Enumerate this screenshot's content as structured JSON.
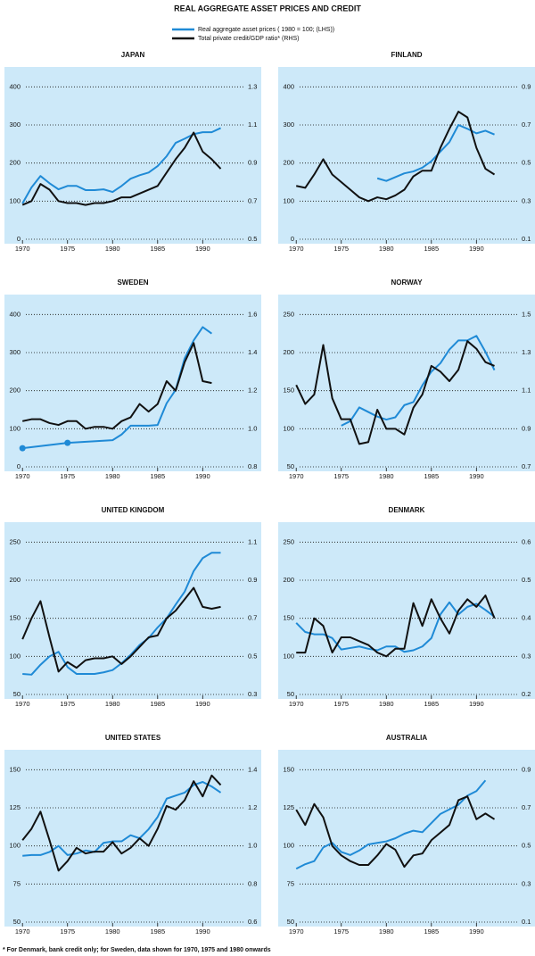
{
  "title": "REAL AGGREGATE ASSET PRICES AND CREDIT",
  "legend": [
    {
      "name": "Real aggregate asset prices ( 1980 = 100; (LHS))",
      "color": "#1f8ad6"
    },
    {
      "name": "Total private credit/GDP ratio* (RHS)",
      "color": "#111111"
    }
  ],
  "footnote": "* For Denmark, bank credit only; for Sweden, data shown for 1970, 1975 and 1980 onwards",
  "chart_data": [
    {
      "type": "line",
      "title": "JAPAN",
      "x": [
        1970,
        1971,
        1972,
        1973,
        1974,
        1975,
        1976,
        1977,
        1978,
        1979,
        1980,
        1981,
        1982,
        1983,
        1984,
        1985,
        1986,
        1987,
        1988,
        1989,
        1990,
        1991,
        1992
      ],
      "xlim": [
        1968,
        1996.5
      ],
      "xticks": [
        1970,
        1975,
        1980,
        1985,
        1990
      ],
      "ylim": [
        0,
        450
      ],
      "yticks": [
        0,
        100,
        200,
        300,
        400
      ],
      "y2lim": [
        0.5,
        1.4
      ],
      "y2ticks": [
        0.5,
        0.7,
        0.9,
        1.1,
        1.3
      ],
      "grid": true,
      "series": [
        {
          "color": "#1f8ad6",
          "values": [
            94,
            136,
            166,
            147,
            131,
            140,
            140,
            129,
            129,
            131,
            124,
            140,
            159,
            168,
            175,
            192,
            218,
            253,
            264,
            276,
            281,
            281,
            292
          ]
        },
        {
          "color": "#111111",
          "axis": "y2",
          "values": [
            0.68,
            0.7,
            0.79,
            0.76,
            0.7,
            0.69,
            0.69,
            0.68,
            0.69,
            0.69,
            0.7,
            0.72,
            0.72,
            0.74,
            0.76,
            0.78,
            0.85,
            0.92,
            0.98,
            1.06,
            0.96,
            0.92,
            0.87
          ]
        }
      ]
    },
    {
      "type": "line",
      "title": "FINLAND",
      "x": [
        1970,
        1971,
        1972,
        1973,
        1974,
        1975,
        1976,
        1977,
        1978,
        1979,
        1980,
        1981,
        1982,
        1983,
        1984,
        1985,
        1986,
        1987,
        1988,
        1989,
        1990,
        1991,
        1992
      ],
      "xlim": [
        1968,
        1996.5
      ],
      "xticks": [
        1970,
        1975,
        1980,
        1985,
        1990
      ],
      "ylim": [
        0,
        450
      ],
      "yticks": [
        0,
        100,
        200,
        300,
        400
      ],
      "y2lim": [
        0.1,
        1.0
      ],
      "y2ticks": [
        0.1,
        0.3,
        0.5,
        0.7,
        0.9
      ],
      "grid": true,
      "series": [
        {
          "color": "#1f8ad6",
          "values": [
            null,
            null,
            null,
            null,
            null,
            null,
            null,
            null,
            null,
            160,
            153,
            163,
            173,
            178,
            188,
            205,
            230,
            255,
            300,
            290,
            278,
            285,
            275
          ]
        },
        {
          "color": "#111111",
          "axis": "y2",
          "values": [
            0.38,
            0.37,
            0.44,
            0.52,
            0.44,
            0.4,
            0.36,
            0.32,
            0.3,
            0.32,
            0.31,
            0.33,
            0.36,
            0.43,
            0.46,
            0.46,
            0.58,
            0.68,
            0.77,
            0.74,
            0.58,
            0.47,
            0.44
          ]
        }
      ]
    },
    {
      "type": "line",
      "title": "SWEDEN",
      "x": [
        1970,
        1971,
        1972,
        1973,
        1974,
        1975,
        1976,
        1977,
        1978,
        1979,
        1980,
        1981,
        1982,
        1983,
        1984,
        1985,
        1986,
        1987,
        1988,
        1989,
        1990,
        1991
      ],
      "xlim": [
        1968,
        1996.5
      ],
      "xticks": [
        1970,
        1975,
        1980,
        1985,
        1990
      ],
      "ylim": [
        0,
        450
      ],
      "yticks": [
        0,
        100,
        200,
        300,
        400
      ],
      "y2lim": [
        0.8,
        1.7
      ],
      "y2ticks": [
        0.8,
        {
          "value": 1,
          "label": "1.0"
        },
        1.2,
        1.4,
        1.6
      ],
      "grid": true,
      "series": [
        {
          "color": "#1f8ad6",
          "x": [
            1970,
            1975,
            1980,
            1981,
            1982,
            1983,
            1984,
            1985,
            1986,
            1987,
            1988,
            1989,
            1990,
            1991
          ],
          "values": [
            49,
            63,
            70,
            85,
            108,
            108,
            108,
            110,
            167,
            202,
            285,
            332,
            367,
            350
          ]
        },
        {
          "color": "#111111",
          "axis": "y2",
          "values": [
            1.04,
            1.05,
            1.05,
            1.03,
            1.02,
            1.04,
            1.04,
            1.0,
            1.01,
            1.01,
            1.0,
            1.04,
            1.06,
            1.13,
            1.09,
            1.13,
            1.25,
            1.2,
            1.35,
            1.45,
            1.25,
            1.24
          ]
        }
      ]
    },
    {
      "type": "line",
      "title": "NORWAY",
      "x": [
        1970,
        1971,
        1972,
        1973,
        1974,
        1975,
        1976,
        1977,
        1978,
        1979,
        1980,
        1981,
        1982,
        1983,
        1984,
        1985,
        1986,
        1987,
        1988,
        1989,
        1990,
        1991,
        1992
      ],
      "xlim": [
        1968,
        1996.5
      ],
      "xticks": [
        1970,
        1975,
        1980,
        1985,
        1990
      ],
      "ylim": [
        50,
        275
      ],
      "yticks": [
        50,
        100,
        150,
        200,
        250
      ],
      "y2lim": [
        0.7,
        1.6
      ],
      "y2ticks": [
        0.7,
        0.9,
        1.1,
        1.3,
        1.5
      ],
      "grid": true,
      "series": [
        {
          "color": "#1f8ad6",
          "values": [
            null,
            null,
            null,
            null,
            null,
            104,
            110,
            128,
            122,
            116,
            112,
            115,
            131,
            135,
            157,
            175,
            186,
            204,
            216,
            216,
            222,
            201,
            177
          ]
        },
        {
          "color": "#111111",
          "axis": "y2",
          "values": [
            1.13,
            1.03,
            1.08,
            1.34,
            1.06,
            0.95,
            0.95,
            0.82,
            0.83,
            1.0,
            0.9,
            0.9,
            0.87,
            1.01,
            1.08,
            1.23,
            1.2,
            1.15,
            1.21,
            1.36,
            1.32,
            1.25,
            1.23
          ]
        }
      ]
    },
    {
      "type": "line",
      "title": "UNITED KINGDOM",
      "x": [
        1970,
        1971,
        1972,
        1973,
        1974,
        1975,
        1976,
        1977,
        1978,
        1979,
        1980,
        1981,
        1982,
        1983,
        1984,
        1985,
        1986,
        1987,
        1988,
        1989,
        1990,
        1991,
        1992
      ],
      "xlim": [
        1968,
        1996.5
      ],
      "xticks": [
        1970,
        1975,
        1980,
        1985,
        1990
      ],
      "ylim": [
        50,
        275
      ],
      "yticks": [
        50,
        100,
        150,
        200,
        250
      ],
      "y2lim": [
        0.3,
        1.2
      ],
      "y2ticks": [
        0.3,
        0.5,
        0.7,
        0.9,
        1.1
      ],
      "grid": true,
      "series": [
        {
          "color": "#1f8ad6",
          "values": [
            77,
            76,
            89,
            100,
            106,
            86,
            77,
            77,
            77,
            79,
            82,
            91,
            102,
            115,
            124,
            138,
            150,
            168,
            185,
            212,
            229,
            236,
            236
          ]
        },
        {
          "color": "#111111",
          "axis": "y2",
          "values": [
            0.59,
            0.7,
            0.79,
            0.6,
            0.42,
            0.47,
            0.44,
            0.48,
            0.49,
            0.49,
            0.5,
            0.46,
            0.5,
            0.55,
            0.6,
            0.61,
            0.7,
            0.74,
            0.8,
            0.86,
            0.76,
            0.75,
            0.76
          ]
        }
      ]
    },
    {
      "type": "line",
      "title": "DENMARK",
      "x": [
        1970,
        1971,
        1972,
        1973,
        1974,
        1975,
        1976,
        1977,
        1978,
        1979,
        1980,
        1981,
        1982,
        1983,
        1984,
        1985,
        1986,
        1987,
        1988,
        1989,
        1990,
        1991,
        1992
      ],
      "xlim": [
        1968,
        1996.5
      ],
      "xticks": [
        1970,
        1975,
        1980,
        1985,
        1990
      ],
      "ylim": [
        50,
        275
      ],
      "yticks": [
        50,
        100,
        150,
        200,
        250
      ],
      "y2lim": [
        0.2,
        0.65
      ],
      "y2ticks": [
        0.2,
        0.3,
        0.4,
        0.5,
        0.6
      ],
      "grid": true,
      "series": [
        {
          "color": "#1f8ad6",
          "values": [
            144,
            132,
            129,
            129,
            124,
            109,
            111,
            113,
            110,
            108,
            113,
            113,
            106,
            108,
            113,
            124,
            155,
            171,
            155,
            165,
            169,
            161,
            152
          ]
        },
        {
          "color": "#111111",
          "axis": "y2",
          "values": [
            0.31,
            0.31,
            0.4,
            0.38,
            0.31,
            0.35,
            0.35,
            0.34,
            0.33,
            0.31,
            0.3,
            0.32,
            0.32,
            0.44,
            0.38,
            0.45,
            0.4,
            0.36,
            0.42,
            0.45,
            0.43,
            0.46,
            0.4
          ]
        }
      ]
    },
    {
      "type": "line",
      "title": "UNITED STATES",
      "x": [
        1970,
        1971,
        1972,
        1973,
        1974,
        1975,
        1976,
        1977,
        1978,
        1979,
        1980,
        1981,
        1982,
        1983,
        1984,
        1985,
        1986,
        1987,
        1988,
        1989,
        1990,
        1991,
        1992
      ],
      "xlim": [
        1968,
        1996.5
      ],
      "xticks": [
        1970,
        1975,
        1980,
        1985,
        1990
      ],
      "ylim": [
        50,
        162.5
      ],
      "yticks": [
        50,
        75,
        100,
        125,
        150
      ],
      "y2lim": [
        0.6,
        1.5
      ],
      "y2ticks": [
        0.6,
        0.8,
        {
          "value": 1,
          "label": "1.0"
        },
        1.2,
        1.4
      ],
      "grid": true,
      "series": [
        {
          "color": "#1f8ad6",
          "values": [
            93.5,
            94,
            94,
            96,
            100,
            94,
            95,
            97,
            96,
            102,
            103,
            103,
            107,
            105,
            111,
            119,
            131,
            133,
            135,
            140,
            142,
            139,
            135
          ]
        },
        {
          "color": "#111111",
          "axis": "y2",
          "values": [
            1.03,
            1.09,
            1.18,
            1.03,
            0.87,
            0.92,
            0.99,
            0.96,
            0.97,
            0.97,
            1.02,
            0.96,
            0.99,
            1.04,
            1.0,
            1.09,
            1.21,
            1.19,
            1.24,
            1.34,
            1.26,
            1.37,
            1.32
          ]
        }
      ]
    },
    {
      "type": "line",
      "title": "AUSTRALIA",
      "x": [
        1970,
        1971,
        1972,
        1973,
        1974,
        1975,
        1976,
        1977,
        1978,
        1979,
        1980,
        1981,
        1982,
        1983,
        1984,
        1985,
        1986,
        1987,
        1988,
        1989,
        1990,
        1991,
        1992
      ],
      "xlim": [
        1968,
        1996.5
      ],
      "xticks": [
        1970,
        1975,
        1980,
        1985,
        1990
      ],
      "ylim": [
        50,
        162.5
      ],
      "yticks": [
        50,
        75,
        100,
        125,
        150
      ],
      "y2lim": [
        0.1,
        1.0
      ],
      "y2ticks": [
        0.1,
        0.3,
        0.5,
        0.7,
        0.9
      ],
      "grid": true,
      "series": [
        {
          "color": "#1f8ad6",
          "values": [
            85,
            88,
            90,
            99,
            102,
            96,
            94,
            97,
            101,
            102,
            103,
            105,
            108,
            110,
            109,
            115,
            121,
            124,
            127,
            133,
            136,
            143,
            null
          ]
        },
        {
          "color": "#111111",
          "axis": "y2",
          "values": [
            0.69,
            0.61,
            0.72,
            0.65,
            0.5,
            0.45,
            0.42,
            0.4,
            0.4,
            0.45,
            0.51,
            0.48,
            0.39,
            0.45,
            0.46,
            0.53,
            0.57,
            0.61,
            0.74,
            0.76,
            0.64,
            0.67,
            0.64
          ]
        }
      ]
    }
  ]
}
